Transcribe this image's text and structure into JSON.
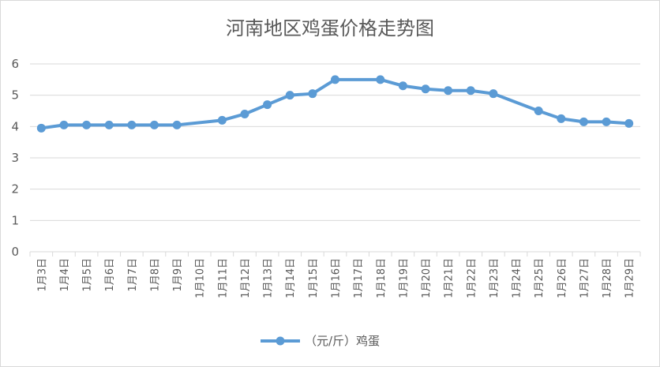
{
  "chart_data": {
    "type": "line",
    "title": "河南地区鸡蛋价格走势图",
    "categories": [
      "1月3日",
      "1月4日",
      "1月5日",
      "1月6日",
      "1月7日",
      "1月8日",
      "1月9日",
      "1月10日",
      "1月11日",
      "1月12日",
      "1月13日",
      "1月14日",
      "1月15日",
      "1月16日",
      "1月17日",
      "1月18日",
      "1月19日",
      "1月20日",
      "1月21日",
      "1月22日",
      "1月23日",
      "1月24日",
      "1月25日",
      "1月26日",
      "1月27日",
      "1月28日",
      "1月29日"
    ],
    "series": [
      {
        "name": "（元/斤）鸡蛋",
        "color": "#5b9bd5",
        "values": [
          3.95,
          4.05,
          4.05,
          4.05,
          4.05,
          4.05,
          4.05,
          null,
          4.2,
          4.4,
          4.7,
          5.0,
          5.05,
          5.5,
          null,
          5.5,
          5.3,
          5.2,
          5.15,
          5.15,
          5.05,
          null,
          4.5,
          4.25,
          4.15,
          4.15,
          4.1
        ]
      }
    ],
    "yticks": [
      "0",
      "1",
      "2",
      "3",
      "4",
      "5",
      "6"
    ],
    "ylim": [
      0,
      6
    ],
    "xlabel": "",
    "ylabel": "",
    "grid": true,
    "legend_position": "bottom",
    "gaps_connected": true
  }
}
